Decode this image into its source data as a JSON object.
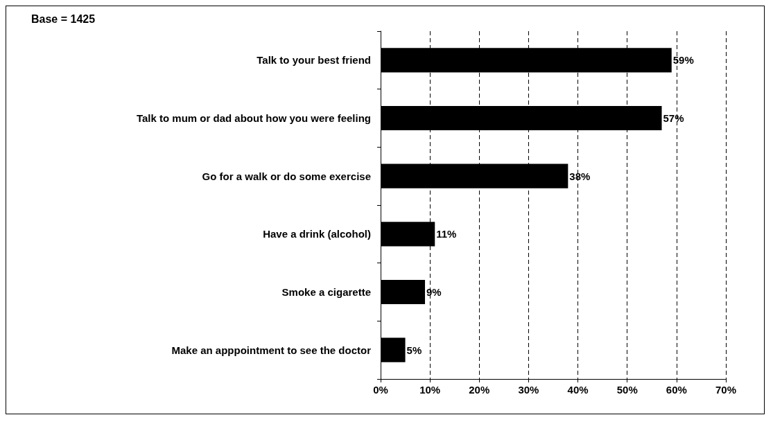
{
  "chart_data": {
    "type": "bar",
    "orientation": "horizontal",
    "annotations": [
      "Base = 1425"
    ],
    "categories": [
      "Talk to your best friend",
      "Talk to mum or dad about how you were feeling",
      "Go for a walk or do some exercise",
      "Have a drink (alcohol)",
      "Smoke a cigarette",
      "Make an apppointment to see the doctor"
    ],
    "values": [
      59,
      57,
      38,
      11,
      9,
      5
    ],
    "value_labels": [
      "59%",
      "57%",
      "38%",
      "11%",
      "9%",
      "5%"
    ],
    "color": "#000000",
    "xlim": [
      0,
      70
    ],
    "xticks": [
      {
        "value": 0,
        "label": "0%"
      },
      {
        "value": 10,
        "label": "10%"
      },
      {
        "value": 20,
        "label": "20%"
      },
      {
        "value": 30,
        "label": "30%"
      },
      {
        "value": 40,
        "label": "40%"
      },
      {
        "value": 50,
        "label": "50%"
      },
      {
        "value": 60,
        "label": "60%"
      },
      {
        "value": 70,
        "label": "70%"
      }
    ],
    "grid": "x",
    "line_style": "dashed"
  }
}
